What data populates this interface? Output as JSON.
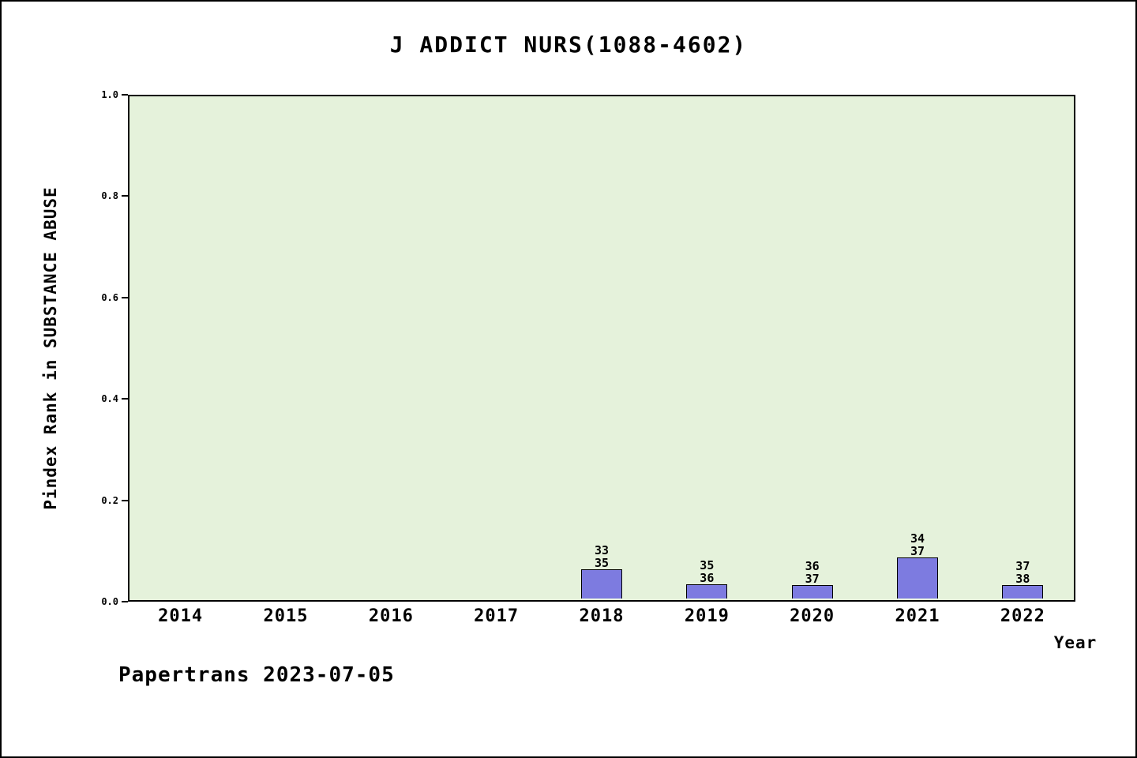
{
  "chart_data": {
    "type": "bar",
    "title": "J ADDICT NURS(1088-4602)",
    "xlabel": "Year",
    "ylabel": "Pindex Rank in SUBSTANCE ABUSE",
    "ylim": [
      0,
      1
    ],
    "ytick_labels": [
      "0.0",
      "0.2",
      "0.4",
      "0.6",
      "0.8",
      "1.0"
    ],
    "ytick_values": [
      0.0,
      0.2,
      0.4,
      0.6,
      0.8,
      1.0
    ],
    "categories": [
      "2014",
      "2015",
      "2016",
      "2017",
      "2018",
      "2019",
      "2020",
      "2021",
      "2022"
    ],
    "bars": [
      {
        "year": "2018",
        "rank": 33,
        "total": 35,
        "value": 0.0571
      },
      {
        "year": "2019",
        "rank": 35,
        "total": 36,
        "value": 0.0278
      },
      {
        "year": "2020",
        "rank": 36,
        "total": 37,
        "value": 0.027
      },
      {
        "year": "2021",
        "rank": 34,
        "total": 37,
        "value": 0.0811
      },
      {
        "year": "2022",
        "rank": 37,
        "total": 38,
        "value": 0.0263
      }
    ],
    "grid": false,
    "legend": false,
    "colors": {
      "bar_fill": "#7d7be0",
      "bar_edge": "#000000",
      "plot_bg": "#e5f2db",
      "page_bg": "#ffffff",
      "text": "#000000"
    }
  },
  "footer": {
    "text": "Papertrans 2023-07-05"
  }
}
